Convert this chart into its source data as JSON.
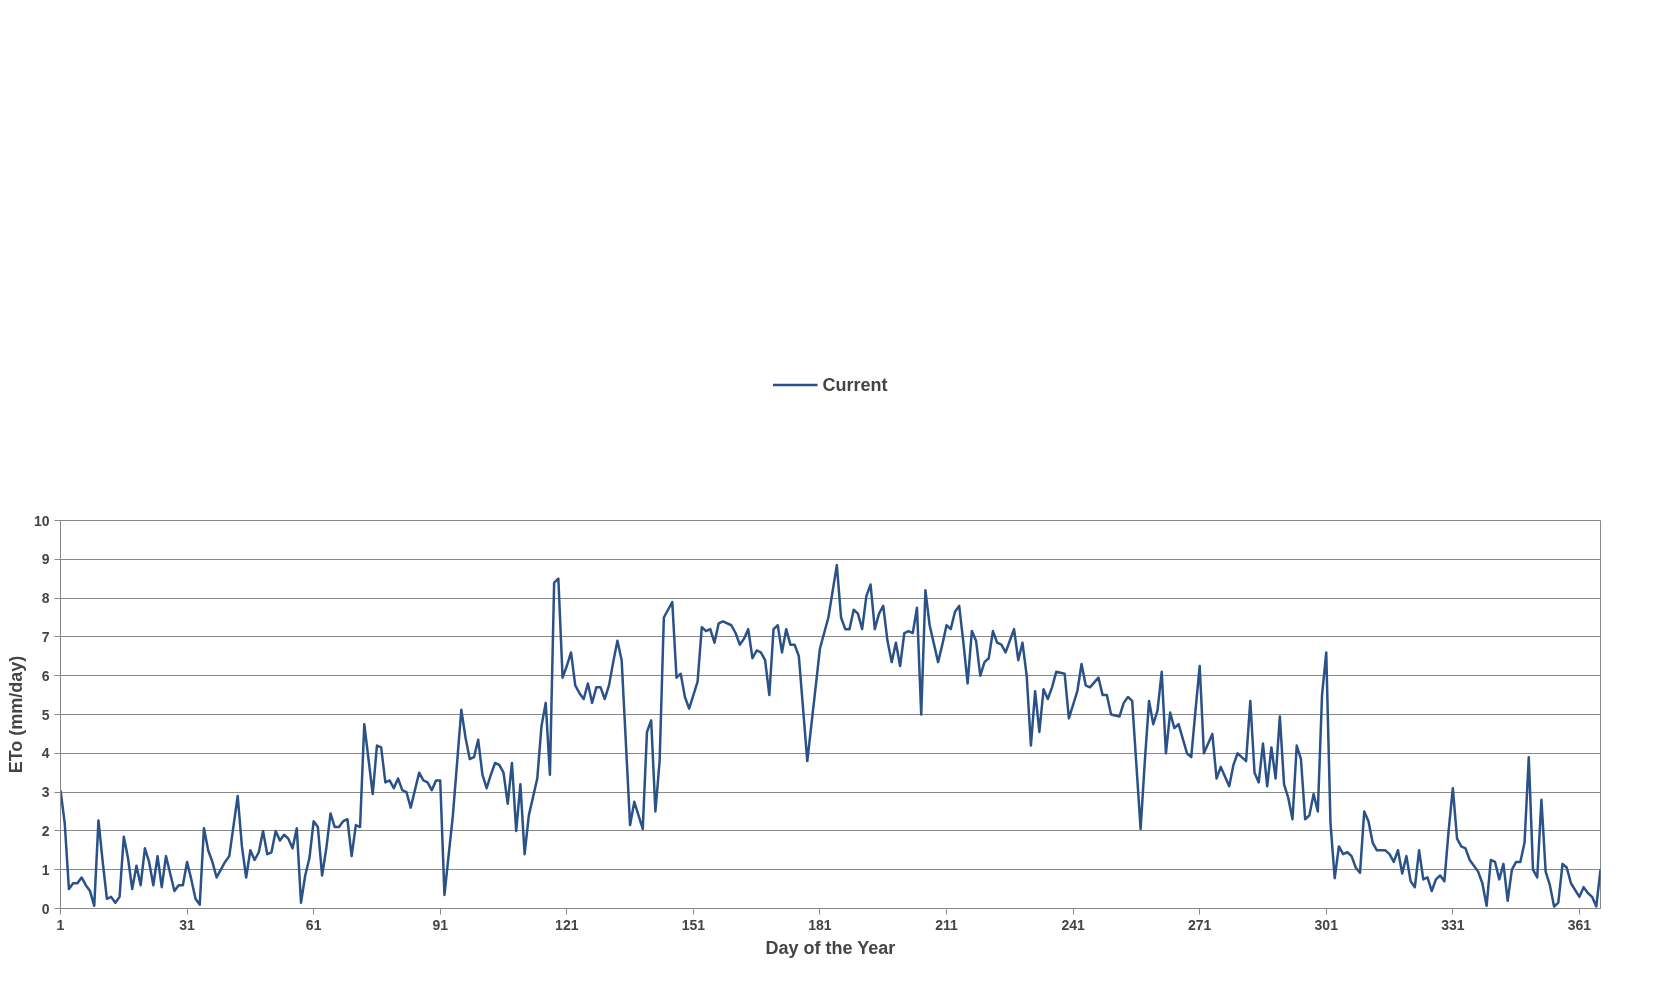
{
  "chart_data": {
    "type": "line",
    "xlabel": "Day of the Year",
    "ylabel": "ETo (mm/day)",
    "xlim": [
      1,
      366
    ],
    "xticks": [
      1,
      31,
      61,
      91,
      121,
      151,
      181,
      211,
      241,
      271,
      301,
      331,
      361
    ],
    "ylim": [
      0,
      10
    ],
    "yticks": [
      0,
      1,
      2,
      3,
      4,
      5,
      6,
      7,
      8,
      9,
      10
    ],
    "grid": "y",
    "legend": "top",
    "marker": "none",
    "line_style": "solid",
    "series": [
      {
        "name": "Current",
        "color": "#2a5288",
        "x": [
          1,
          2,
          3,
          4,
          5,
          6,
          7,
          8,
          9,
          10,
          11,
          12,
          13,
          14,
          15,
          16,
          17,
          18,
          19,
          20,
          21,
          22,
          23,
          24,
          25,
          26,
          27,
          28,
          29,
          30,
          31,
          32,
          33,
          34,
          35,
          36,
          37,
          38,
          40,
          41,
          43,
          44,
          45,
          46,
          47,
          48,
          49,
          50,
          51,
          52,
          53,
          54,
          55,
          56,
          57,
          58,
          59,
          60,
          61,
          62,
          63,
          64,
          65,
          66,
          67,
          68,
          69,
          70,
          71,
          72,
          73,
          75,
          76,
          77,
          78,
          79,
          80,
          81,
          82,
          83,
          84,
          85,
          86,
          87,
          88,
          89,
          90,
          91,
          92,
          94,
          96,
          97,
          98,
          99,
          100,
          101,
          102,
          103,
          104,
          105,
          106,
          107,
          108,
          109,
          110,
          111,
          112,
          114,
          115,
          116,
          117,
          118,
          119,
          120,
          121,
          122,
          123,
          124,
          125,
          126,
          127,
          128,
          129,
          130,
          131,
          132,
          133,
          134,
          136,
          137,
          139,
          140,
          141,
          142,
          143,
          144,
          146,
          147,
          148,
          149,
          150,
          152,
          153,
          154,
          155,
          156,
          157,
          158,
          160,
          161,
          162,
          163,
          164,
          165,
          166,
          167,
          168,
          169,
          170,
          171,
          172,
          173,
          174,
          175,
          176,
          178,
          181,
          183,
          185,
          186,
          187,
          188,
          189,
          190,
          191,
          192,
          193,
          194,
          195,
          196,
          197,
          198,
          199,
          200,
          201,
          202,
          203,
          204,
          205,
          206,
          207,
          209,
          210,
          211,
          212,
          213,
          214,
          215,
          216,
          217,
          218,
          219,
          220,
          221,
          222,
          223,
          224,
          225,
          226,
          227,
          228,
          229,
          230,
          231,
          232,
          233,
          234,
          235,
          236,
          237,
          239,
          240,
          242,
          243,
          244,
          245,
          247,
          248,
          249,
          250,
          252,
          253,
          254,
          255,
          257,
          258,
          259,
          260,
          261,
          262,
          263,
          264,
          265,
          266,
          268,
          269,
          270,
          271,
          272,
          274,
          275,
          276,
          278,
          279,
          280,
          282,
          283,
          284,
          285,
          286,
          287,
          288,
          289,
          290,
          291,
          292,
          293,
          294,
          295,
          296,
          297,
          298,
          299,
          300,
          301,
          302,
          303,
          304,
          305,
          306,
          307,
          308,
          309,
          310,
          311,
          312,
          313,
          315,
          316,
          317,
          318,
          319,
          320,
          321,
          322,
          323,
          324,
          325,
          326,
          327,
          328,
          329,
          330,
          331,
          332,
          333,
          334,
          335,
          336,
          337,
          338,
          339,
          340,
          341,
          342,
          343,
          344,
          345,
          346,
          347,
          348,
          349,
          350,
          351,
          352,
          353,
          354,
          355,
          356,
          357,
          358,
          359,
          361,
          362,
          363,
          364,
          365,
          366
        ],
        "values": [
          3.05,
          2.2,
          0.5,
          0.65,
          0.65,
          0.8,
          0.6,
          0.45,
          0.07,
          2.27,
          1.2,
          0.25,
          0.3,
          0.15,
          0.3,
          1.85,
          1.3,
          0.5,
          1.1,
          0.6,
          1.55,
          1.2,
          0.6,
          1.35,
          0.55,
          1.35,
          0.9,
          0.45,
          0.6,
          0.6,
          1.2,
          0.75,
          0.25,
          0.1,
          2.07,
          1.5,
          1.2,
          0.8,
          1.2,
          1.35,
          2.9,
          1.6,
          0.8,
          1.5,
          1.25,
          1.45,
          2.0,
          1.4,
          1.45,
          2.0,
          1.75,
          1.9,
          1.8,
          1.55,
          2.07,
          0.15,
          0.85,
          1.3,
          2.25,
          2.1,
          0.85,
          1.55,
          2.45,
          2.1,
          2.1,
          2.25,
          2.3,
          1.35,
          2.15,
          2.1,
          4.75,
          2.95,
          4.2,
          4.15,
          3.25,
          3.3,
          3.1,
          3.35,
          3.05,
          3.0,
          2.6,
          3.05,
          3.5,
          3.3,
          3.25,
          3.05,
          3.3,
          3.3,
          0.35,
          2.4,
          5.12,
          4.4,
          3.85,
          3.9,
          4.35,
          3.45,
          3.1,
          3.45,
          3.75,
          3.7,
          3.5,
          2.7,
          3.75,
          2.0,
          3.2,
          1.4,
          2.4,
          3.35,
          4.7,
          5.3,
          3.45,
          8.4,
          8.5,
          5.95,
          6.25,
          6.6,
          5.75,
          5.55,
          5.4,
          5.8,
          5.3,
          5.7,
          5.7,
          5.4,
          5.75,
          6.35,
          6.9,
          6.4,
          2.15,
          2.75,
          2.05,
          4.55,
          4.85,
          2.5,
          3.8,
          7.5,
          7.9,
          5.95,
          6.05,
          5.45,
          5.15,
          5.85,
          7.25,
          7.15,
          7.2,
          6.85,
          7.35,
          7.4,
          7.3,
          7.1,
          6.8,
          6.95,
          7.2,
          6.45,
          6.65,
          6.6,
          6.4,
          5.5,
          7.2,
          7.3,
          6.6,
          7.2,
          6.8,
          6.8,
          6.5,
          3.8,
          6.7,
          7.5,
          8.85,
          7.5,
          7.2,
          7.2,
          7.7,
          7.6,
          7.2,
          8.05,
          8.35,
          7.2,
          7.6,
          7.8,
          6.9,
          6.35,
          6.85,
          6.25,
          7.1,
          7.15,
          7.1,
          7.75,
          5.0,
          8.2,
          7.3,
          6.35,
          6.8,
          7.3,
          7.2,
          7.65,
          7.8,
          6.85,
          5.8,
          7.15,
          6.9,
          6.0,
          6.35,
          6.45,
          7.15,
          6.85,
          6.8,
          6.6,
          6.9,
          7.2,
          6.4,
          6.85,
          6.0,
          4.2,
          5.6,
          4.55,
          5.65,
          5.4,
          5.7,
          6.1,
          6.05,
          4.9,
          5.6,
          6.3,
          5.75,
          5.7,
          5.95,
          5.5,
          5.5,
          5.0,
          4.95,
          5.3,
          5.45,
          5.35,
          2.05,
          3.8,
          5.35,
          4.75,
          5.1,
          6.1,
          4.0,
          5.05,
          4.65,
          4.75,
          4.0,
          3.9,
          5.1,
          6.25,
          4.0,
          4.5,
          3.35,
          3.65,
          3.15,
          3.7,
          4.0,
          3.8,
          5.35,
          3.5,
          3.25,
          4.25,
          3.15,
          4.15,
          3.35,
          4.95,
          3.2,
          2.85,
          2.3,
          4.2,
          3.85,
          2.3,
          2.4,
          2.95,
          2.5,
          5.5,
          6.6,
          2.2,
          0.78,
          1.6,
          1.4,
          1.45,
          1.35,
          1.05,
          0.92,
          2.5,
          2.25,
          1.7,
          1.5,
          1.5,
          1.4,
          1.2,
          1.5,
          0.9,
          1.35,
          0.7,
          0.55,
          1.5,
          0.75,
          0.8,
          0.45,
          0.75,
          0.85,
          0.7,
          2.0,
          3.1,
          1.8,
          1.6,
          1.55,
          1.25,
          1.1,
          0.95,
          0.65,
          0.07,
          1.25,
          1.2,
          0.75,
          1.15,
          0.2,
          1.0,
          1.2,
          1.2,
          1.7,
          3.9,
          1.0,
          0.8,
          2.8,
          0.95,
          0.6,
          0.05,
          0.15,
          1.15,
          1.05,
          0.65,
          0.3,
          0.55,
          0.4,
          0.3,
          0.05,
          1.0
        ]
      }
    ]
  }
}
